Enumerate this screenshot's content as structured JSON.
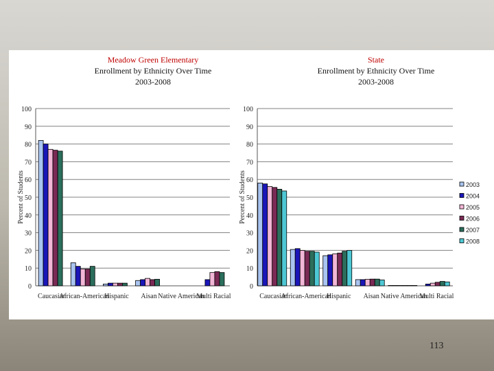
{
  "slide": {
    "page_number": "113"
  },
  "colors": {
    "series": [
      "#a9c4f0",
      "#1a16b8",
      "#f2b6d6",
      "#7a2a55",
      "#2b6e5c",
      "#4ec8d4"
    ],
    "plot_bg": "#c0c0c0"
  },
  "chart_data": [
    {
      "type": "bar",
      "title": [
        "Meadow Green Elementary",
        "Enrollment by Ethnicity Over Time",
        "2003-2008"
      ],
      "ylabel": "Percent of Students",
      "xlabel": "",
      "ylim": [
        0,
        100
      ],
      "yticks": [
        0,
        10,
        20,
        30,
        40,
        50,
        60,
        70,
        80,
        90,
        100
      ],
      "categories": [
        "Caucasian",
        "African-American",
        "Hispanic",
        "Aisan",
        "Native American",
        "Multi Racial"
      ],
      "series": [
        {
          "name": "2003",
          "values": [
            82,
            13,
            1,
            3,
            0,
            0
          ]
        },
        {
          "name": "2004",
          "values": [
            80,
            11,
            1.5,
            3.5,
            0,
            3.5
          ]
        },
        {
          "name": "2005",
          "values": [
            77,
            9.5,
            1.5,
            4.2,
            0,
            7.5
          ]
        },
        {
          "name": "2006",
          "values": [
            76.5,
            9.5,
            1.5,
            3.5,
            0,
            8
          ]
        },
        {
          "name": "2007",
          "values": [
            76,
            11,
            1.5,
            3.7,
            0,
            7.5
          ]
        }
      ],
      "grid": true,
      "legend": "none"
    },
    {
      "type": "bar",
      "title": [
        "State",
        "Enrollment by Ethnicity Over Time",
        "2003-2008"
      ],
      "ylabel": "Percent of Students",
      "xlabel": "",
      "ylim": [
        0,
        100
      ],
      "yticks": [
        0,
        10,
        20,
        30,
        40,
        50,
        60,
        70,
        80,
        90,
        100
      ],
      "categories": [
        "Caucasian",
        "African-American",
        "Hispanic",
        "Aisan",
        "Native American",
        "Multi Racial"
      ],
      "series": [
        {
          "name": "2003",
          "values": [
            58,
            20.5,
            17,
            3.5,
            0.2,
            0
          ]
        },
        {
          "name": "2004",
          "values": [
            57.5,
            21,
            17.5,
            3.5,
            0.2,
            1
          ]
        },
        {
          "name": "2005",
          "values": [
            56,
            20,
            18,
            3.7,
            0.2,
            1.5
          ]
        },
        {
          "name": "2006",
          "values": [
            55.5,
            19.5,
            18.5,
            3.8,
            0.2,
            2
          ]
        },
        {
          "name": "2007",
          "values": [
            54.5,
            19.5,
            19.5,
            3.8,
            0.2,
            2.5
          ]
        },
        {
          "name": "2008",
          "values": [
            53.5,
            19,
            20,
            3.3,
            0.2,
            2.2
          ]
        }
      ],
      "grid": true,
      "legend": "right"
    }
  ]
}
